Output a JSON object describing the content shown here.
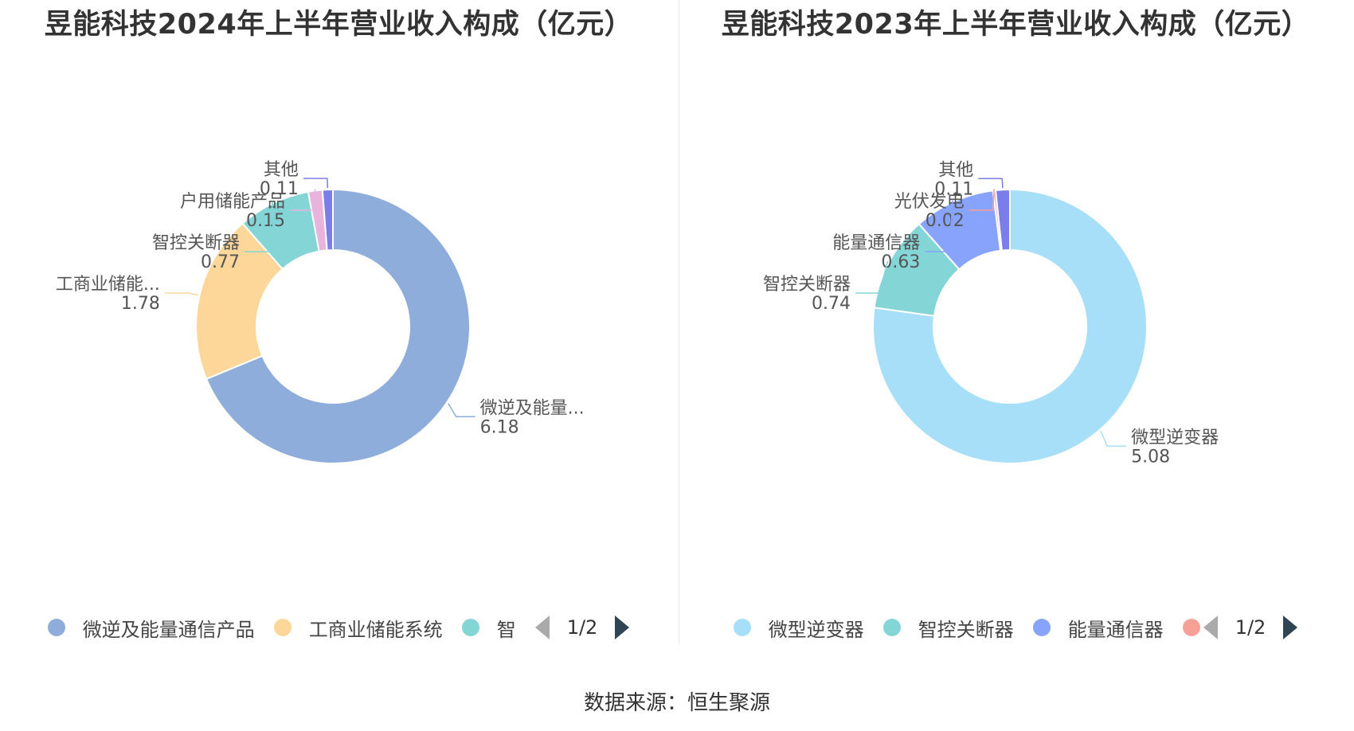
{
  "chart_data": [
    {
      "type": "pie",
      "title": "昱能科技2024年上半年营业收入构成（亿元）",
      "categories": [
        "微逆及能量通信产品",
        "工商业储能系统",
        "智控关断器",
        "户用储能产品",
        "其他"
      ],
      "display_labels": [
        "微逆及能量...",
        "工商业储能...",
        "智控关断器",
        "户用储能产品",
        "其他"
      ],
      "values": [
        6.18,
        1.78,
        0.77,
        0.15,
        0.11
      ],
      "value_labels": [
        "6.18",
        "1.78",
        "0.77",
        "0.15",
        "0.11"
      ],
      "colors": [
        "#8eaddb",
        "#fdd799",
        "#84d5d6",
        "#e8b3dc",
        "#7b7eea"
      ],
      "legend_items": [
        "微逆及能量通信产品",
        "工商业储能系统",
        "智"
      ],
      "legend_page": "1/2"
    },
    {
      "type": "pie",
      "title": "昱能科技2023年上半年营业收入构成（亿元）",
      "categories": [
        "微型逆变器",
        "智控关断器",
        "能量通信器",
        "光伏发电",
        "其他"
      ],
      "display_labels": [
        "微型逆变器",
        "智控关断器",
        "能量通信器",
        "光伏发电",
        "其他"
      ],
      "values": [
        5.08,
        0.74,
        0.63,
        0.02,
        0.11
      ],
      "value_labels": [
        "5.08",
        "0.74",
        "0.63",
        "0.02",
        "0.11"
      ],
      "colors": [
        "#a8dff8",
        "#84d5d6",
        "#88a3fb",
        "#f7a096",
        "#7b7eea"
      ],
      "legend_items": [
        "微型逆变器",
        "智控关断器",
        "能量通信器",
        ""
      ],
      "legend_page": "1/2"
    }
  ],
  "footer": {
    "source": "数据来源：恒生聚源"
  }
}
